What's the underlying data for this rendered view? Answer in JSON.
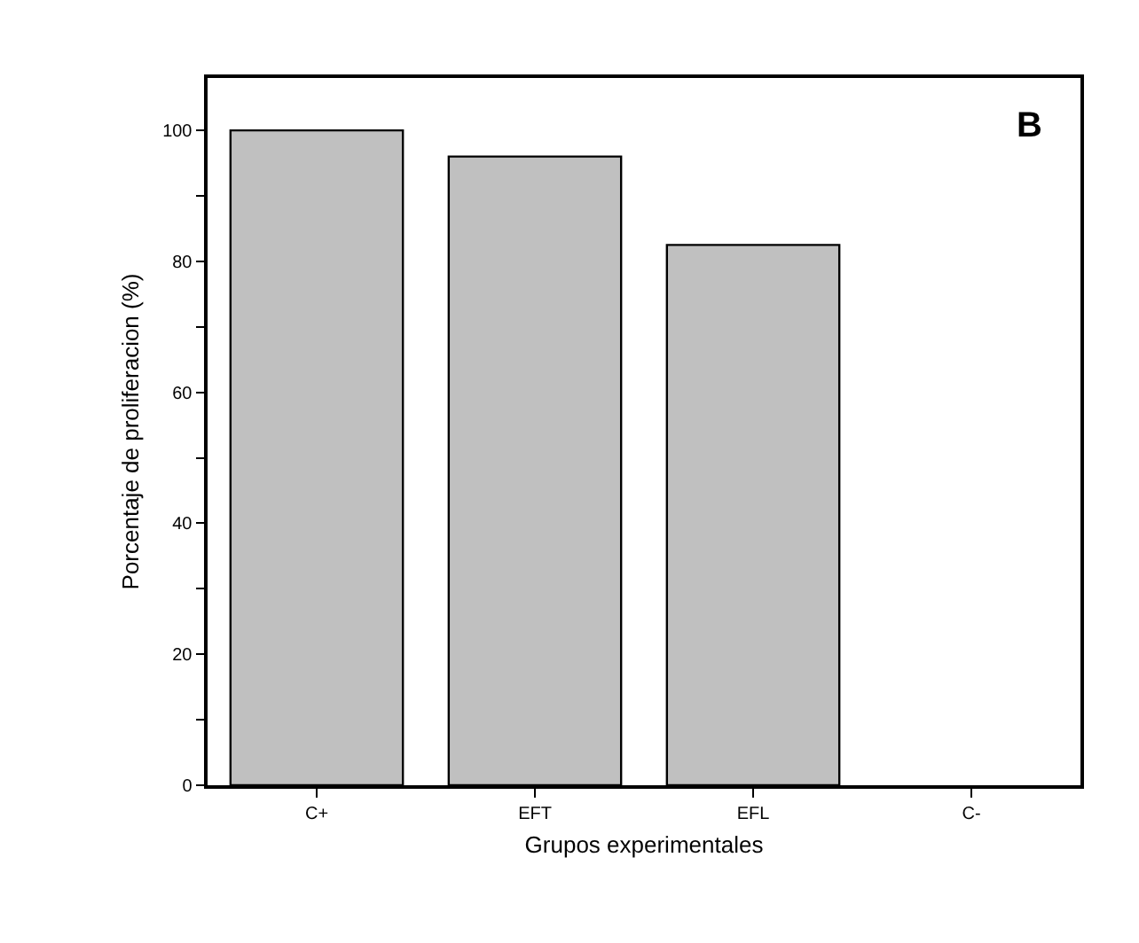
{
  "chart_data": {
    "type": "bar",
    "xlabel": "Grupos experimentales",
    "ylabel": "Porcentaje de proliferacion (%)",
    "annotations": [
      "B"
    ],
    "categories": [
      "C+",
      "EFT",
      "EFL",
      "C-"
    ],
    "values": [
      100,
      96,
      82.5,
      0
    ],
    "color": "#c0c0c0",
    "ylim": [
      0,
      108
    ],
    "yticks": [
      0,
      {
        "value": 10,
        "label": null
      },
      20,
      {
        "value": 30,
        "label": null
      },
      40,
      {
        "value": 50,
        "label": null
      },
      60,
      {
        "value": 70,
        "label": null
      },
      80,
      {
        "value": 90,
        "label": null
      },
      100
    ],
    "legend": false
  }
}
